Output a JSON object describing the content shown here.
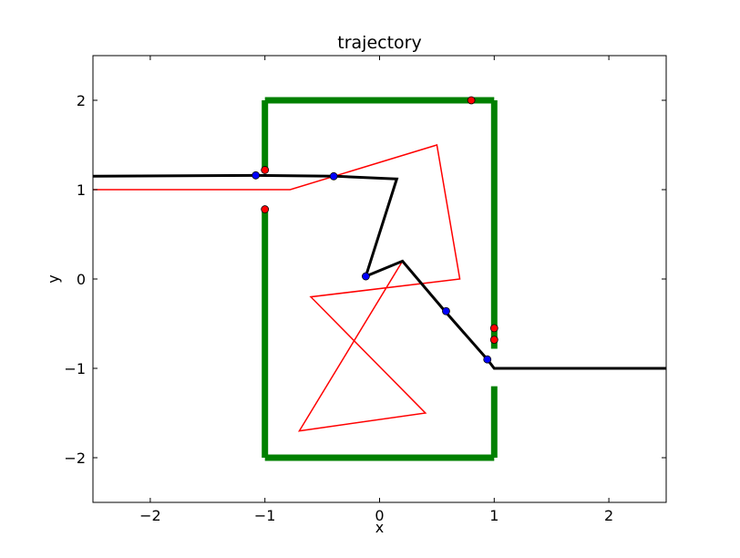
{
  "chart_data": {
    "type": "line",
    "title": "trajectory",
    "xlabel": "x",
    "ylabel": "y",
    "xlim": [
      -2.5,
      2.5
    ],
    "ylim": [
      -2.5,
      2.5
    ],
    "grid": false,
    "legend": "none",
    "x_ticks": [
      -2,
      -1,
      0,
      1,
      2
    ],
    "y_ticks": [
      -2,
      -1,
      0,
      1,
      2
    ],
    "x_tick_labels": [
      "−2",
      "−1",
      "0",
      "1",
      "2"
    ],
    "y_tick_labels": [
      "−2",
      "−1",
      "0",
      "1",
      "2"
    ],
    "walls": {
      "color": "#008000",
      "segments": [
        {
          "x": [
            -1,
            -1
          ],
          "y": [
            2,
            1.2
          ]
        },
        {
          "x": [
            -1,
            1
          ],
          "y": [
            2,
            2
          ]
        },
        {
          "x": [
            1,
            1
          ],
          "y": [
            2,
            -0.78
          ]
        },
        {
          "x": [
            1,
            1
          ],
          "y": [
            -1.2,
            -2
          ]
        },
        {
          "x": [
            1,
            -1
          ],
          "y": [
            -2,
            -2
          ]
        },
        {
          "x": [
            -1,
            -1
          ],
          "y": [
            -2,
            0.78
          ]
        }
      ]
    },
    "series": [
      {
        "color": "#ff0000",
        "width": "thin",
        "x": [
          -2.5,
          -0.78,
          0.5,
          0.7,
          -0.6,
          0.4,
          -0.7,
          0.2,
          1.0,
          2.5
        ],
        "y": [
          1.0,
          1.0,
          1.5,
          0.0,
          -0.2,
          -1.5,
          -1.7,
          0.2,
          -1.0,
          -1.0
        ]
      },
      {
        "color": "#000000",
        "width": "thick",
        "x": [
          -2.5,
          -1.08,
          -0.38,
          0.15,
          -0.12,
          0.2,
          0.57,
          0.94,
          1.0,
          2.5
        ],
        "y": [
          1.15,
          1.16,
          1.15,
          1.12,
          0.03,
          0.2,
          -0.36,
          -0.9,
          -1.0,
          -1.0
        ]
      }
    ],
    "red_markers": {
      "color": "#ff0000",
      "x": [
        -1.0,
        -1.0,
        0.8,
        1.0,
        1.0
      ],
      "y": [
        1.22,
        0.78,
        2.0,
        -0.55,
        -0.68
      ]
    },
    "blue_markers": {
      "color": "#0000ff",
      "x": [
        -1.08,
        -0.4,
        -0.12,
        0.58,
        0.94
      ],
      "y": [
        1.16,
        1.15,
        0.03,
        -0.36,
        -0.9
      ]
    }
  }
}
